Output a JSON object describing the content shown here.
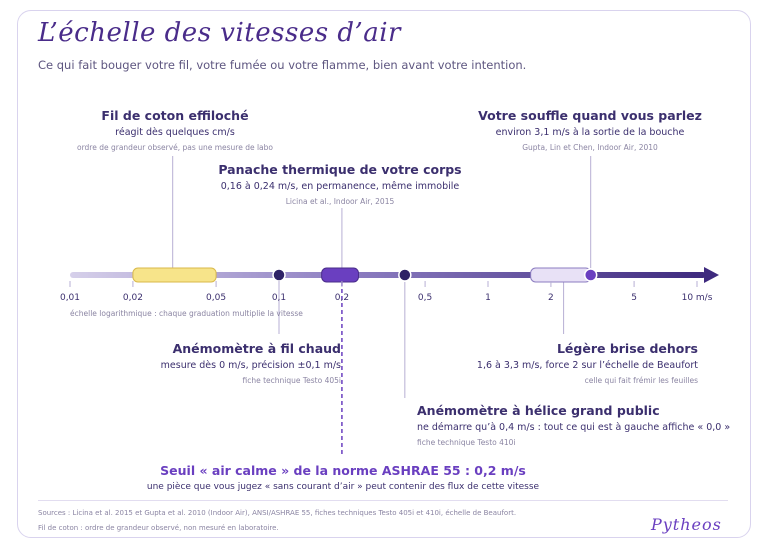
{
  "title": "L’échelle des vitesses d’air",
  "subtitle": "Ce qui fait bouger votre fil, votre fumée ou votre flamme, bien avant votre intention.",
  "axis": {
    "ticks": [
      "0,01",
      "0,02",
      "0,05",
      "0,1",
      "0,2",
      "0,5",
      "1",
      "2",
      "5",
      "10 m/s"
    ],
    "tick_values": [
      0.01,
      0.02,
      0.05,
      0.1,
      0.2,
      0.5,
      1,
      2,
      5,
      10
    ],
    "scale": "log",
    "note": "échelle logarithmique : chaque graduation multiplie la vitesse"
  },
  "ranges": [
    {
      "id": "cotton",
      "from": 0.02,
      "to": 0.05,
      "color": "#f7e48a"
    },
    {
      "id": "plume",
      "from": 0.16,
      "to": 0.24,
      "color": "#6a3fc0"
    },
    {
      "id": "breath",
      "from": 1.6,
      "to": 3.1,
      "color": "#e8e1f6"
    }
  ],
  "points": [
    {
      "id": "hotwire",
      "value": 0.1
    },
    {
      "id": "vane",
      "value": 0.4
    },
    {
      "id": "breath-end",
      "value": 3.1
    }
  ],
  "labels": {
    "cotton": {
      "heading": "Fil de coton effiloché",
      "detail": "réagit dès quelques cm/s",
      "source": "ordre de grandeur observé, pas une mesure de labo"
    },
    "plume": {
      "heading": "Panache thermique de votre corps",
      "detail": "0,16 à 0,24 m/s, en permanence, même immobile",
      "source": "Licina et al., Indoor Air, 2015"
    },
    "breath": {
      "heading": "Votre souffle quand vous parlez",
      "detail": "environ 3,1 m/s à la sortie de la bouche",
      "source": "Gupta, Lin et Chen, Indoor Air, 2010"
    },
    "hotwire": {
      "heading": "Anémomètre à fil chaud",
      "detail": "mesure dès 0 m/s, précision ±0,1 m/s",
      "source": "fiche technique Testo 405i"
    },
    "breeze": {
      "heading": "Légère brise dehors",
      "detail": "1,6 à 3,3 m/s, force 2 sur l’échelle de Beaufort",
      "source": "celle qui fait frémir les feuilles"
    },
    "vane": {
      "heading": "Anémomètre à hélice grand public",
      "detail": "ne démarre qu’à 0,4 m/s : tout ce qui est à gauche affiche « 0,0 »",
      "source": "fiche technique Testo 410i"
    },
    "ashrae": {
      "heading": "Seuil « air calme » de la norme ASHRAE 55 : 0,2 m/s",
      "detail": "une pièce que vous jugez « sans courant d’air » peut contenir des flux de cette vitesse"
    }
  },
  "footer": {
    "sources": "Sources : Licina et al. 2015 et Gupta et al. 2010 (Indoor Air), ANSI/ASHRAE 55, fiches techniques Testo 405i et 410i, échelle de Beaufort.",
    "note": "Fil de coton : ordre de grandeur observé, non mesuré en laboratoire.",
    "brand": "Pytheos"
  },
  "colors": {
    "accent": "#6a3fc0",
    "dark": "#3b2f6e",
    "yellow": "#f7e48a",
    "light": "#e8e1f6"
  }
}
